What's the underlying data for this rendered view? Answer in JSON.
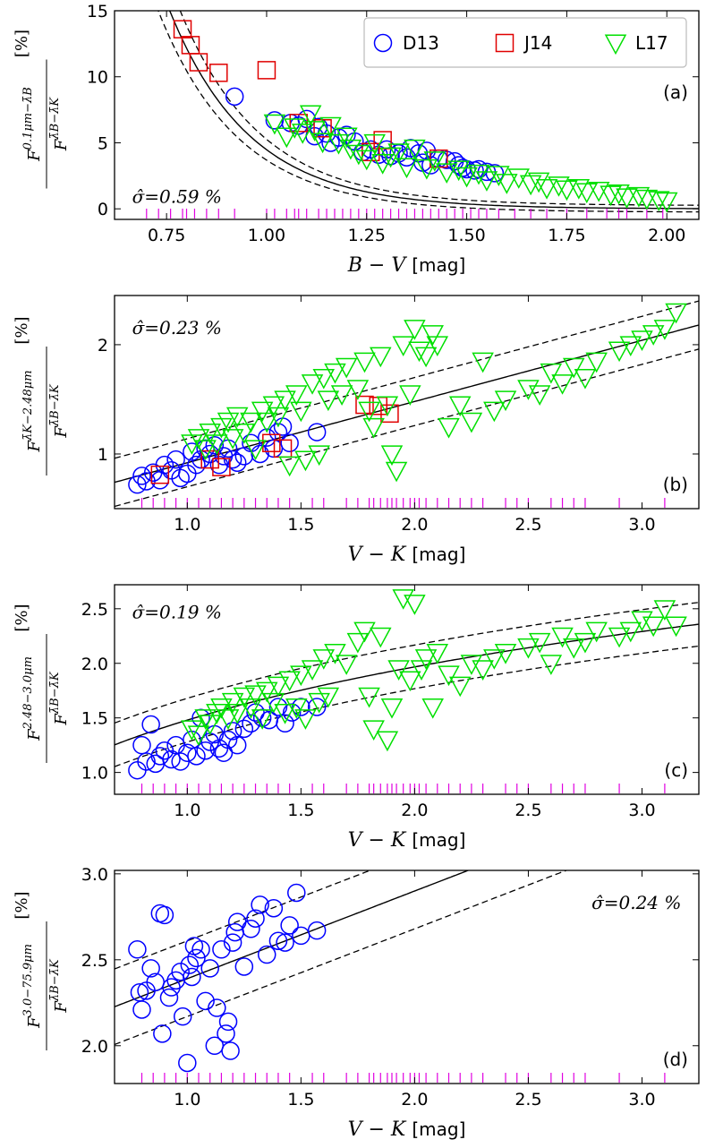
{
  "chart_data": [
    {
      "panel": "(a)",
      "type": "scatter",
      "xlabel": "B − V",
      "xunit": "[mag]",
      "ylabel_num": "F",
      "ylabel_num_sup": "0.1μm−λ̄B",
      "ylabel_den": "F",
      "ylabel_den_sup": "λ̄B−λ̄K",
      "yunit": "[%]",
      "xlim": [
        0.62,
        2.08
      ],
      "ylim": [
        -0.8,
        15
      ],
      "xticks": [
        0.75,
        1.0,
        1.25,
        1.5,
        1.75,
        2.0
      ],
      "xtick_labels": [
        "0.75",
        "1.00",
        "1.25",
        "1.50",
        "1.75",
        "2.00"
      ],
      "yticks": [
        0,
        5,
        10,
        15
      ],
      "ytick_labels": [
        "0",
        "5",
        "10",
        "15"
      ],
      "sigma_text": "σ̂=0.59 %",
      "fit": {
        "form": "exp",
        "a": 70.0,
        "b": 5.0,
        "c": 0.0,
        "band": 0.6
      },
      "series": [
        {
          "name": "D13",
          "marker": "circle",
          "color": "#0000ff",
          "x": [
            0.92,
            1.02,
            1.06,
            1.08,
            1.1,
            1.12,
            1.13,
            1.15,
            1.16,
            1.18,
            1.2,
            1.22,
            1.24,
            1.26,
            1.28,
            1.3,
            1.31,
            1.33,
            1.35,
            1.36,
            1.38,
            1.39,
            1.4,
            1.41,
            1.43,
            1.45,
            1.47,
            1.48,
            1.49,
            1.5,
            1.52,
            1.53,
            1.55,
            1.57
          ],
          "y": [
            8.5,
            6.7,
            6.5,
            6.3,
            6.8,
            5.5,
            6.2,
            5.7,
            5.0,
            5.4,
            5.6,
            5.1,
            4.3,
            4.5,
            4.1,
            4.5,
            4.0,
            4.2,
            3.9,
            4.6,
            4.2,
            3.5,
            4.4,
            3.3,
            3.8,
            3.7,
            3.6,
            3.3,
            3.1,
            3.0,
            2.9,
            3.0,
            2.8,
            2.7
          ]
        },
        {
          "name": "J14",
          "marker": "square",
          "color": "#e00000",
          "x": [
            0.79,
            0.81,
            0.83,
            0.88,
            1.0,
            1.08,
            1.14,
            1.26,
            1.29,
            1.43
          ],
          "y": [
            13.6,
            12.4,
            11.1,
            10.3,
            10.5,
            6.5,
            6.1,
            4.3,
            5.2,
            3.8
          ]
        },
        {
          "name": "L17",
          "marker": "triangle",
          "color": "#00e000",
          "x": [
            1.02,
            1.05,
            1.07,
            1.09,
            1.11,
            1.12,
            1.14,
            1.16,
            1.18,
            1.2,
            1.21,
            1.23,
            1.25,
            1.27,
            1.29,
            1.31,
            1.33,
            1.35,
            1.37,
            1.4,
            1.42,
            1.45,
            1.48,
            1.5,
            1.53,
            1.55,
            1.58,
            1.6,
            1.63,
            1.66,
            1.68,
            1.7,
            1.73,
            1.75,
            1.78,
            1.8,
            1.83,
            1.86,
            1.88,
            1.9,
            1.93,
            1.95,
            1.98,
            2.0
          ],
          "y": [
            6.5,
            5.5,
            6.2,
            5.8,
            7.2,
            6.0,
            5.1,
            6.3,
            5.0,
            5.5,
            4.6,
            4.2,
            3.8,
            5.0,
            3.5,
            4.0,
            4.3,
            3.2,
            4.6,
            3.1,
            3.7,
            2.8,
            3.0,
            2.5,
            2.7,
            2.2,
            2.6,
            2.0,
            2.4,
            1.9,
            2.1,
            1.6,
            1.8,
            1.5,
            1.6,
            1.3,
            1.4,
            1.1,
            1.2,
            0.9,
            1.0,
            0.8,
            0.7,
            0.6
          ]
        }
      ],
      "rug_x": [
        0.7,
        0.73,
        0.76,
        0.79,
        0.8,
        0.82,
        0.85,
        0.88,
        0.92,
        1.0,
        1.02,
        1.05,
        1.07,
        1.08,
        1.1,
        1.13,
        1.15,
        1.17,
        1.19,
        1.21,
        1.23,
        1.25,
        1.27,
        1.29,
        1.31,
        1.33,
        1.35,
        1.37,
        1.39,
        1.41,
        1.43,
        1.45,
        1.47,
        1.49,
        1.51,
        1.53,
        1.55,
        1.58,
        1.62,
        1.66,
        1.7,
        1.75,
        1.8,
        1.85,
        1.88,
        1.9,
        1.95,
        1.99
      ]
    },
    {
      "panel": "(b)",
      "type": "scatter",
      "xlabel": "V − K",
      "xunit": "[mag]",
      "ylabel_num": "F",
      "ylabel_num_sup": "λ̄K−2.48μm",
      "ylabel_den": "F",
      "ylabel_den_sup": "λ̄B−λ̄K",
      "yunit": "[%]",
      "xlim": [
        0.68,
        3.25
      ],
      "ylim": [
        0.5,
        2.45
      ],
      "xticks": [
        1.0,
        1.5,
        2.0,
        2.5,
        3.0
      ],
      "xtick_labels": [
        "1.0",
        "1.5",
        "2.0",
        "2.5",
        "3.0"
      ],
      "yticks": [
        1,
        2
      ],
      "ytick_labels": [
        "1",
        "2"
      ],
      "sigma_text": "σ̂=0.23 %",
      "fit": {
        "form": "line",
        "m": 0.56,
        "k": 0.36,
        "band": 0.22
      },
      "series": [
        {
          "name": "D13",
          "marker": "circle",
          "color": "#0000ff",
          "x": [
            0.78,
            0.8,
            0.82,
            0.85,
            0.88,
            0.9,
            0.93,
            0.95,
            0.97,
            1.0,
            1.02,
            1.04,
            1.06,
            1.08,
            1.1,
            1.12,
            1.14,
            1.16,
            1.18,
            1.2,
            1.22,
            1.25,
            1.28,
            1.32,
            1.35,
            1.38,
            1.4,
            1.42,
            1.45,
            1.57
          ],
          "y": [
            0.72,
            0.8,
            0.75,
            0.83,
            0.76,
            0.9,
            0.85,
            0.95,
            0.78,
            0.82,
            1.02,
            0.9,
            0.95,
            1.05,
            1.0,
            1.08,
            0.9,
            0.98,
            1.05,
            0.95,
            0.92,
            0.98,
            1.1,
            1.0,
            1.15,
            1.05,
            1.2,
            1.25,
            1.1,
            1.2
          ]
        },
        {
          "name": "J14",
          "marker": "square",
          "color": "#e00000",
          "x": [
            0.88,
            1.1,
            1.15,
            1.37,
            1.42,
            1.78,
            1.84,
            1.89
          ],
          "y": [
            0.81,
            0.95,
            0.88,
            1.1,
            1.05,
            1.45,
            1.44,
            1.37
          ]
        },
        {
          "name": "L17",
          "marker": "triangle",
          "color": "#00e000",
          "x": [
            1.02,
            1.05,
            1.08,
            1.1,
            1.13,
            1.15,
            1.18,
            1.2,
            1.22,
            1.25,
            1.28,
            1.3,
            1.33,
            1.35,
            1.38,
            1.4,
            1.43,
            1.45,
            1.48,
            1.5,
            1.52,
            1.55,
            1.58,
            1.6,
            1.62,
            1.65,
            1.68,
            1.7,
            1.75,
            1.78,
            1.8,
            1.82,
            1.85,
            1.88,
            1.9,
            1.92,
            1.95,
            1.98,
            2.0,
            2.02,
            2.05,
            2.08,
            2.1,
            2.15,
            2.2,
            2.25,
            2.3,
            2.35,
            2.4,
            2.5,
            2.55,
            2.6,
            2.65,
            2.7,
            2.75,
            2.8,
            2.9,
            2.95,
            3.0,
            3.05,
            3.1,
            3.15
          ],
          "y": [
            1.1,
            1.15,
            1.05,
            1.2,
            1.1,
            1.25,
            1.3,
            1.15,
            1.35,
            1.2,
            1.3,
            1.05,
            1.4,
            1.3,
            1.45,
            1.35,
            1.5,
            0.9,
            1.55,
            1.4,
            0.95,
            1.65,
            1.0,
            1.7,
            1.5,
            1.75,
            1.55,
            1.8,
            1.6,
            1.85,
            1.4,
            1.25,
            1.9,
            1.45,
            1.0,
            0.85,
            2.0,
            1.55,
            2.15,
            1.95,
            1.9,
            2.1,
            2.0,
            1.25,
            1.45,
            1.3,
            1.85,
            1.4,
            1.5,
            1.6,
            1.55,
            1.75,
            1.65,
            1.8,
            1.7,
            1.85,
            1.95,
            2.0,
            2.05,
            2.1,
            2.15,
            2.3
          ]
        }
      ],
      "rug_x": [
        0.8,
        0.85,
        0.9,
        0.95,
        1.0,
        1.05,
        1.1,
        1.15,
        1.2,
        1.25,
        1.3,
        1.35,
        1.4,
        1.45,
        1.55,
        1.6,
        1.7,
        1.75,
        1.8,
        1.82,
        1.85,
        1.88,
        1.9,
        1.92,
        1.95,
        1.98,
        2.0,
        2.02,
        2.05,
        2.1,
        2.15,
        2.2,
        2.25,
        2.3,
        2.4,
        2.45,
        2.5,
        2.6,
        2.65,
        2.7,
        2.75,
        2.9,
        3.1
      ]
    },
    {
      "panel": "(c)",
      "type": "scatter",
      "xlabel": "V − K",
      "xunit": "[mag]",
      "ylabel_num": "F",
      "ylabel_num_sup": "2.48−3.0μm",
      "ylabel_den": "F",
      "ylabel_den_sup": "λ̄B−λ̄K",
      "yunit": "[%]",
      "xlim": [
        0.68,
        3.25
      ],
      "ylim": [
        0.8,
        2.72
      ],
      "xticks": [
        1.0,
        1.5,
        2.0,
        2.5,
        3.0
      ],
      "xtick_labels": [
        "1.0",
        "1.5",
        "2.0",
        "2.5",
        "3.0"
      ],
      "yticks": [
        1.0,
        1.5,
        2.0,
        2.5
      ],
      "ytick_labels": [
        "1.0",
        "1.5",
        "2.0",
        "2.5"
      ],
      "sigma_text": "σ̂=0.19 %",
      "fit": {
        "form": "log",
        "a": 1.05,
        "b": 0.98,
        "c": 0.55,
        "band": 0.2
      },
      "series": [
        {
          "name": "D13",
          "marker": "circle",
          "color": "#0000ff",
          "x": [
            0.78,
            0.8,
            0.82,
            0.84,
            0.86,
            0.88,
            0.9,
            0.93,
            0.95,
            0.97,
            1.0,
            1.02,
            1.04,
            1.06,
            1.08,
            1.1,
            1.12,
            1.14,
            1.16,
            1.18,
            1.2,
            1.22,
            1.25,
            1.28,
            1.3,
            1.33,
            1.36,
            1.4,
            1.43,
            1.46,
            1.5,
            1.57
          ],
          "y": [
            1.02,
            1.25,
            1.1,
            1.44,
            1.08,
            1.15,
            1.2,
            1.12,
            1.25,
            1.1,
            1.18,
            1.3,
            1.15,
            1.5,
            1.2,
            1.28,
            1.35,
            1.22,
            1.18,
            1.3,
            1.38,
            1.25,
            1.4,
            1.45,
            1.55,
            1.5,
            1.48,
            1.6,
            1.45,
            1.55,
            1.6,
            1.6
          ]
        },
        {
          "name": "L17",
          "marker": "triangle",
          "color": "#00e000",
          "x": [
            1.02,
            1.05,
            1.08,
            1.1,
            1.13,
            1.15,
            1.18,
            1.2,
            1.22,
            1.25,
            1.28,
            1.3,
            1.33,
            1.35,
            1.38,
            1.4,
            1.43,
            1.45,
            1.48,
            1.5,
            1.52,
            1.55,
            1.58,
            1.6,
            1.62,
            1.65,
            1.7,
            1.75,
            1.78,
            1.8,
            1.82,
            1.85,
            1.88,
            1.9,
            1.93,
            1.95,
            1.98,
            2.0,
            2.03,
            2.05,
            2.08,
            2.1,
            2.15,
            2.2,
            2.25,
            2.3,
            2.35,
            2.4,
            2.5,
            2.55,
            2.6,
            2.65,
            2.7,
            2.75,
            2.8,
            2.9,
            2.95,
            3.0,
            3.05,
            3.1,
            3.15
          ],
          "y": [
            1.4,
            1.35,
            1.5,
            1.45,
            1.55,
            1.6,
            1.5,
            1.65,
            1.55,
            1.7,
            1.6,
            1.72,
            1.5,
            1.75,
            1.65,
            1.8,
            1.55,
            1.85,
            1.6,
            1.9,
            1.5,
            1.95,
            1.65,
            2.05,
            1.7,
            2.1,
            2.0,
            2.2,
            2.3,
            1.7,
            1.4,
            2.25,
            1.3,
            1.6,
            1.95,
            2.6,
            1.85,
            2.55,
            1.95,
            2.05,
            1.6,
            2.1,
            1.9,
            1.8,
            2.0,
            1.95,
            2.05,
            2.1,
            2.15,
            2.2,
            2.0,
            2.25,
            2.15,
            2.2,
            2.3,
            2.25,
            2.3,
            2.4,
            2.35,
            2.5,
            2.35
          ]
        }
      ],
      "rug_x": [
        0.8,
        0.85,
        0.9,
        0.95,
        1.0,
        1.05,
        1.1,
        1.15,
        1.2,
        1.25,
        1.3,
        1.35,
        1.4,
        1.45,
        1.55,
        1.6,
        1.7,
        1.75,
        1.8,
        1.82,
        1.85,
        1.88,
        1.9,
        1.92,
        1.95,
        1.98,
        2.0,
        2.02,
        2.05,
        2.1,
        2.15,
        2.2,
        2.25,
        2.3,
        2.4,
        2.45,
        2.5,
        2.6,
        2.65,
        2.7,
        2.75,
        2.9,
        3.1
      ]
    },
    {
      "panel": "(d)",
      "type": "scatter",
      "xlabel": "V − K",
      "xunit": "[mag]",
      "ylabel_num": "F",
      "ylabel_num_sup": "3.0−75.9μm",
      "ylabel_den": "F",
      "ylabel_den_sup": "λ̄B−λ̄K",
      "yunit": "[%]",
      "xlim": [
        0.68,
        3.25
      ],
      "ylim": [
        1.78,
        3.02
      ],
      "xticks": [
        1.0,
        1.5,
        2.0,
        2.5,
        3.0
      ],
      "xtick_labels": [
        "1.0",
        "1.5",
        "2.0",
        "2.5",
        "3.0"
      ],
      "yticks": [
        2.0,
        2.5,
        3.0
      ],
      "ytick_labels": [
        "2.0",
        "2.5",
        "3.0"
      ],
      "sigma_text": "σ̂=0.24 %",
      "fit": {
        "form": "line",
        "m": 0.51,
        "k": 1.88,
        "band": 0.22
      },
      "series": [
        {
          "name": "D13",
          "marker": "circle",
          "color": "#0000ff",
          "x": [
            0.78,
            0.79,
            0.8,
            0.82,
            0.84,
            0.86,
            0.88,
            0.89,
            0.9,
            0.92,
            0.93,
            0.95,
            0.97,
            0.98,
            1.0,
            1.01,
            1.02,
            1.03,
            1.04,
            1.06,
            1.08,
            1.1,
            1.12,
            1.13,
            1.15,
            1.17,
            1.18,
            1.19,
            1.2,
            1.21,
            1.22,
            1.25,
            1.28,
            1.3,
            1.32,
            1.35,
            1.38,
            1.4,
            1.43,
            1.45,
            1.48,
            1.5,
            1.57
          ],
          "y": [
            2.56,
            2.31,
            2.21,
            2.32,
            2.45,
            2.37,
            2.77,
            2.07,
            2.76,
            2.28,
            2.34,
            2.38,
            2.43,
            2.17,
            1.9,
            2.47,
            2.4,
            2.58,
            2.51,
            2.56,
            2.26,
            2.45,
            2.0,
            2.22,
            2.56,
            2.07,
            2.14,
            1.97,
            2.6,
            2.66,
            2.72,
            2.46,
            2.68,
            2.74,
            2.82,
            2.53,
            2.8,
            2.61,
            2.6,
            2.7,
            2.89,
            2.64,
            2.67
          ]
        }
      ],
      "rug_x": [
        0.8,
        0.85,
        0.9,
        0.95,
        1.0,
        1.05,
        1.1,
        1.15,
        1.2,
        1.25,
        1.3,
        1.35,
        1.4,
        1.45,
        1.55,
        1.6,
        1.7,
        1.75,
        1.8,
        1.82,
        1.85,
        1.88,
        1.9,
        1.92,
        1.95,
        1.98,
        2.0,
        2.02,
        2.05,
        2.1,
        2.15,
        2.2,
        2.25,
        2.3,
        2.4,
        2.45,
        2.5,
        2.6,
        2.65,
        2.7,
        2.75,
        2.9,
        3.1
      ]
    }
  ],
  "legend": [
    {
      "label": "D13",
      "marker": "circle",
      "color": "#0000ff"
    },
    {
      "label": "J14",
      "marker": "square",
      "color": "#e00000"
    },
    {
      "label": "L17",
      "marker": "triangle",
      "color": "#00e000"
    }
  ],
  "colors": {
    "rug": "#e000e0",
    "fit": "#000000"
  }
}
